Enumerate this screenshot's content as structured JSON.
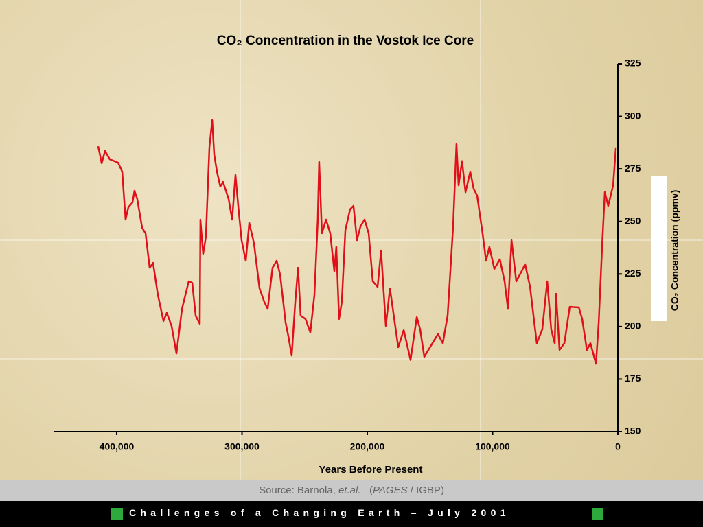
{
  "chart_data": {
    "type": "line",
    "title": "CO₂ Concentration in the Vostok Ice Core",
    "x_label": "Years Before Present",
    "y_label": "CO₂ Concentration (ppmv)",
    "x": [
      414800,
      412000,
      409300,
      405500,
      398900,
      395600,
      392900,
      390700,
      387400,
      385800,
      383600,
      379700,
      377000,
      373700,
      371000,
      367100,
      362700,
      360000,
      356200,
      352300,
      347900,
      342500,
      339700,
      337000,
      333700,
      333200,
      331000,
      328800,
      326000,
      323800,
      322200,
      320000,
      317300,
      315100,
      310700,
      307900,
      305200,
      303000,
      300300,
      297000,
      294200,
      290400,
      286000,
      282200,
      279500,
      275600,
      272300,
      269600,
      265200,
      263000,
      260300,
      257500,
      255300,
      253200,
      249300,
      245500,
      242200,
      239500,
      238400,
      236200,
      232900,
      229600,
      226300,
      224700,
      222500,
      220300,
      217500,
      213700,
      211000,
      208200,
      205500,
      202200,
      198900,
      195600,
      191800,
      189000,
      185200,
      181900,
      179200,
      175300,
      170900,
      165500,
      160500,
      157800,
      154500,
      149600,
      143600,
      139700,
      135900,
      131500,
      128800,
      127100,
      124400,
      121600,
      117800,
      115100,
      112300,
      108000,
      105200,
      102500,
      98600,
      94200,
      90400,
      87700,
      84900,
      81100,
      76700,
      74000,
      70100,
      66800,
      64700,
      60300,
      56400,
      53200,
      50400,
      49300,
      46600,
      42700,
      38400,
      31200,
      28500,
      24700,
      21900,
      17500,
      15300,
      12600,
      10400,
      7700,
      3800,
      1600
    ],
    "values": [
      285.8,
      277.7,
      283.5,
      279.6,
      278,
      273.7,
      250.9,
      256.8,
      259,
      264.6,
      260.7,
      247,
      244.4,
      228,
      230.3,
      215,
      202.6,
      206.5,
      200.3,
      187.2,
      208.4,
      221.5,
      220.8,
      205.2,
      201.3,
      250.9,
      234.6,
      242.7,
      285.2,
      298.2,
      281.9,
      273.7,
      266.6,
      268.8,
      260.7,
      250.9,
      272.1,
      257.4,
      241.1,
      231.3,
      249.3,
      239.5,
      218.2,
      211.7,
      208.4,
      228,
      231.3,
      224.8,
      201.9,
      195.4,
      186.2,
      211.7,
      228,
      205.2,
      203.6,
      197.2,
      215,
      250.9,
      278.3,
      244.4,
      250.9,
      244.4,
      226.4,
      237.9,
      203.6,
      211.7,
      246,
      255.8,
      257.4,
      241.1,
      247.6,
      250.9,
      244.4,
      221.5,
      218.9,
      236.2,
      200.3,
      218.2,
      206.5,
      190.2,
      198.3,
      184.1,
      204.5,
      198.6,
      185.6,
      190.5,
      196.4,
      192.1,
      205.2,
      247.6,
      286.8,
      267.2,
      278.7,
      263.9,
      273.7,
      265.6,
      262.3,
      244.4,
      231.3,
      237.9,
      227.4,
      232,
      221.5,
      208.4,
      241.1,
      221.5,
      226.4,
      229.7,
      218.9,
      202.3,
      192.1,
      198.6,
      221.5,
      198.6,
      192.1,
      215.6,
      188.9,
      192.1,
      209.4,
      209.1,
      203.6,
      188.9,
      192.1,
      182.3,
      201.9,
      237.9,
      263.9,
      257.4,
      267.2,
      285.2
    ],
    "color": "#e0101a",
    "xlim": [
      450400,
      0
    ],
    "xticks": [
      {
        "value": 400000,
        "label": "400,000"
      },
      {
        "value": 300000,
        "label": "300,000"
      },
      {
        "value": 200000,
        "label": "200,000"
      },
      {
        "value": 100000,
        "label": "100,000"
      },
      0
    ],
    "ylim": [
      150,
      325
    ],
    "yticks": [
      150,
      175,
      200,
      225,
      250,
      275,
      300,
      325
    ],
    "y_axis_side": "right"
  },
  "source": {
    "prefix": "Source: Barnola, ",
    "authors": "et.al.",
    "open": "(",
    "project": "PAGES",
    "rest": " / IGBP)"
  },
  "footer": "Challenges of a Changing Earth – July 2001"
}
